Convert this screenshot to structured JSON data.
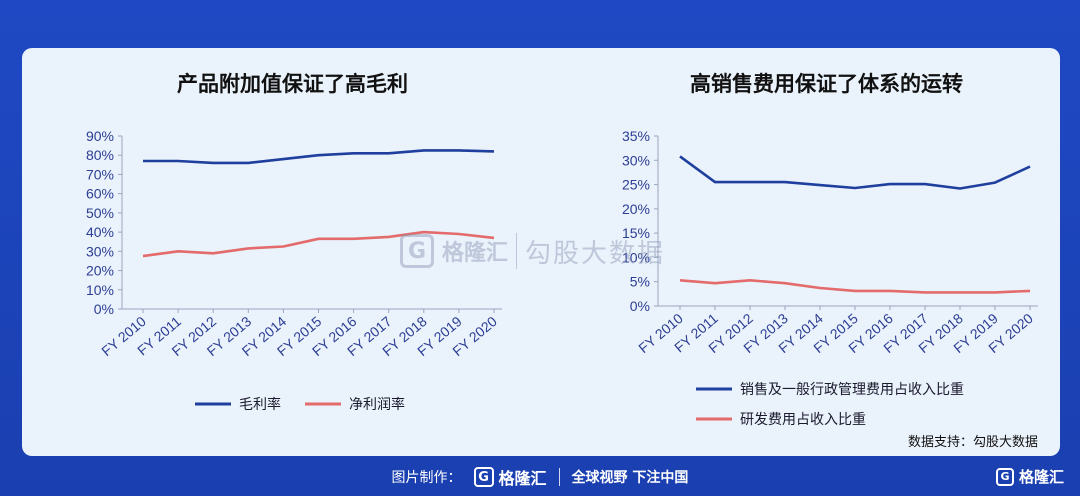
{
  "chart_data": [
    {
      "type": "line",
      "title": "产品附加值保证了高毛利",
      "categories": [
        "FY 2010",
        "FY 2011",
        "FY 2012",
        "FY 2013",
        "FY 2014",
        "FY 2015",
        "FY 2016",
        "FY 2017",
        "FY 2018",
        "FY 2019",
        "FY 2020"
      ],
      "ylim": [
        0,
        90
      ],
      "yticks": [
        "0%",
        "10%",
        "20%",
        "30%",
        "40%",
        "50%",
        "60%",
        "70%",
        "80%",
        "90%"
      ],
      "series": [
        {
          "name": "毛利率",
          "color": "#1f3f9e",
          "values": [
            77,
            77,
            76,
            76,
            78,
            80,
            81,
            81,
            82.5,
            82.5,
            82
          ]
        },
        {
          "name": "净利润率",
          "color": "#e36b6b",
          "values": [
            27.5,
            30,
            29,
            31.5,
            32.5,
            36.5,
            36.5,
            37.5,
            40,
            39,
            37
          ]
        }
      ],
      "grid": false,
      "legend_position": "bottom"
    },
    {
      "type": "line",
      "title": "高销售费用保证了体系的运转",
      "categories": [
        "FY 2010",
        "FY 2011",
        "FY 2012",
        "FY 2013",
        "FY 2014",
        "FY 2015",
        "FY 2016",
        "FY 2017",
        "FY 2018",
        "FY 2019",
        "FY 2020"
      ],
      "ylim": [
        0,
        35
      ],
      "yticks": [
        "0%",
        "5%",
        "10%",
        "15%",
        "20%",
        "25%",
        "30%",
        "35%"
      ],
      "series": [
        {
          "name": "销售及一般行政管理费用占收入比重",
          "color": "#1f3f9e",
          "values": [
            30.8,
            25.5,
            25.5,
            25.5,
            24.9,
            24.3,
            25.1,
            25.1,
            24.2,
            25.4,
            28.7
          ]
        },
        {
          "name": "研发费用占收入比重",
          "color": "#e36b6b",
          "values": [
            5.3,
            4.7,
            5.3,
            4.7,
            3.7,
            3.1,
            3.1,
            2.8,
            2.8,
            2.8,
            3.1
          ]
        }
      ],
      "grid": false,
      "legend_position": "bottom"
    }
  ],
  "source_label": "数据支持：勾股大数据",
  "watermark": {
    "brand": "格隆汇",
    "text": "勾股大数据",
    "mark": "G"
  },
  "footer": {
    "prefix": "图片制作：",
    "brand": "格隆汇",
    "mark": "G",
    "slogan": "全球视野 下注中国"
  },
  "corner_logo": {
    "brand": "格隆汇",
    "mark": "G"
  }
}
